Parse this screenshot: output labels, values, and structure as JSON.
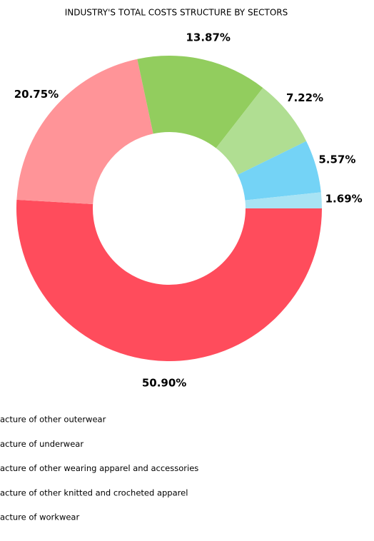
{
  "chart_data": {
    "type": "pie",
    "title": "INDUSTRY'S TOTAL COSTS STRUCTURE BY SECTORS",
    "categories": [
      "acture of other outerwear",
      "acture of underwear",
      "acture of other wearing apparel and accessories",
      "acture of other knitted and crocheted apparel",
      "acture of workwear",
      null
    ],
    "values": [
      50.9,
      20.75,
      13.87,
      7.22,
      5.57,
      1.69
    ],
    "value_labels": [
      "50.90%",
      "20.75%",
      "13.87%",
      "7.22%",
      "5.57%",
      "1.69%"
    ],
    "colors": [
      "#ff4c5c",
      "#ff9498",
      "#92cd5e",
      "#b0de92",
      "#74d3f6",
      "#a8e3f4"
    ]
  }
}
